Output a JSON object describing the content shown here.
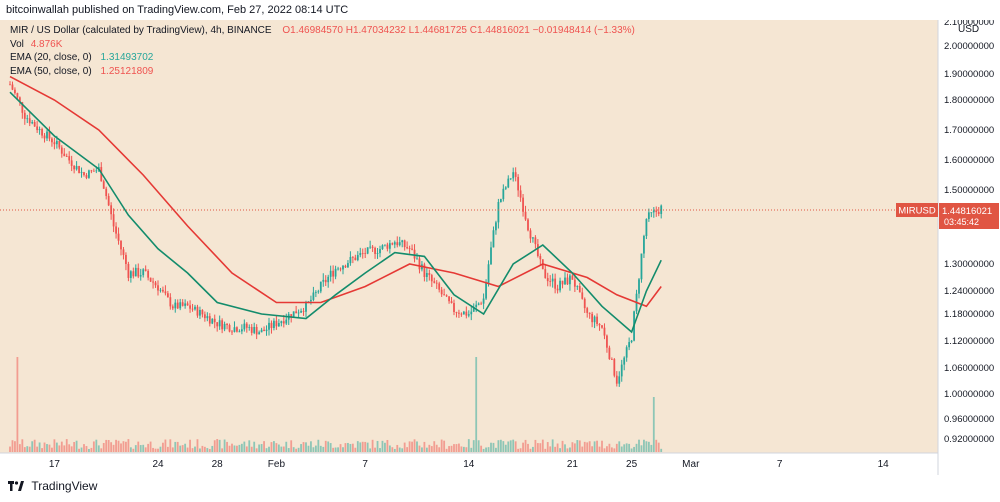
{
  "header": {
    "published": "bitcoinwallah published on TradingView.com, Feb 27, 2022 08:14 UTC"
  },
  "legend": {
    "symbol_line": "MIR / US Dollar (calculated by TradingView), 4h, BINANCE",
    "ohlc": "O1.46984570 H1.47034232 L1.44681725 C1.44816021 −0.01948414 (−1.33%)",
    "vol_label": "Vol",
    "vol_value": "4.876K",
    "ema20_label": "EMA (20, close, 0)",
    "ema20_value": "1.31493702",
    "ema50_label": "EMA (50, close, 0)",
    "ema50_value": "1.25121809"
  },
  "footer": {
    "brand": "TradingView"
  },
  "colors": {
    "background": "#f5e6d3",
    "up": "#26a69a",
    "down": "#ef5350",
    "ema20": "#138c6c",
    "ema50": "#e53935",
    "price_tag": "#e05543"
  },
  "chart_data": {
    "type": "candlestick",
    "currency": "USD",
    "symbol": "MIRUSD",
    "last_price": "1.44816021",
    "countdown": "03:45:42",
    "y_ticks": [
      "2.10000000",
      "2.00000000",
      "1.90000000",
      "1.80000000",
      "1.70000000",
      "1.60000000",
      "1.50000000",
      "1.40000000",
      "1.30000000",
      "1.24000000",
      "1.18000000",
      "1.12000000",
      "1.06000000",
      "1.00000000",
      "0.96000000",
      "0.92000000"
    ],
    "x_ticks": [
      "17",
      "24",
      "28",
      "Feb",
      "7",
      "14",
      "21",
      "25",
      "Mar",
      "7",
      "14"
    ],
    "ylim": [
      0.9,
      2.12
    ],
    "price_series": [
      [
        "Jan 14",
        1.86
      ],
      [
        "Jan 15",
        1.75
      ],
      [
        "Jan 16",
        1.7
      ],
      [
        "Jan 17",
        1.66
      ],
      [
        "Jan 18",
        1.6
      ],
      [
        "Jan 19",
        1.55
      ],
      [
        "Jan 20",
        1.57
      ],
      [
        "Jan 21",
        1.4
      ],
      [
        "Jan 22",
        1.28
      ],
      [
        "Jan 23",
        1.28
      ],
      [
        "Jan 24",
        1.25
      ],
      [
        "Jan 25",
        1.2
      ],
      [
        "Jan 26",
        1.2
      ],
      [
        "Jan 27",
        1.18
      ],
      [
        "Jan 28",
        1.16
      ],
      [
        "Jan 29",
        1.15
      ],
      [
        "Jan 30",
        1.15
      ],
      [
        "Jan 31",
        1.14
      ],
      [
        "Feb 1",
        1.16
      ],
      [
        "Feb 2",
        1.18
      ],
      [
        "Feb 3",
        1.2
      ],
      [
        "Feb 4",
        1.25
      ],
      [
        "Feb 5",
        1.29
      ],
      [
        "Feb 6",
        1.31
      ],
      [
        "Feb 7",
        1.33
      ],
      [
        "Feb 8",
        1.34
      ],
      [
        "Feb 9",
        1.36
      ],
      [
        "Feb 10",
        1.34
      ],
      [
        "Feb 11",
        1.28
      ],
      [
        "Feb 12",
        1.24
      ],
      [
        "Feb 13",
        1.19
      ],
      [
        "Feb 14",
        1.18
      ],
      [
        "Feb 15",
        1.22
      ],
      [
        "Feb 16",
        1.46
      ],
      [
        "Feb 17",
        1.56
      ],
      [
        "Feb 18",
        1.4
      ],
      [
        "Feb 19",
        1.28
      ],
      [
        "Feb 20",
        1.25
      ],
      [
        "Feb 21",
        1.27
      ],
      [
        "Feb 22",
        1.18
      ],
      [
        "Feb 23",
        1.15
      ],
      [
        "Feb 24",
        1.03
      ],
      [
        "Feb 25",
        1.13
      ],
      [
        "Feb 26",
        1.42
      ],
      [
        "Feb 27",
        1.45
      ]
    ],
    "ema20_series": [
      [
        "Jan 14",
        1.83
      ],
      [
        "Jan 17",
        1.68
      ],
      [
        "Jan 20",
        1.57
      ],
      [
        "Jan 22",
        1.43
      ],
      [
        "Jan 24",
        1.34
      ],
      [
        "Jan 26",
        1.28
      ],
      [
        "Jan 28",
        1.21
      ],
      [
        "Jan 31",
        1.18
      ],
      [
        "Feb 3",
        1.17
      ],
      [
        "Feb 5",
        1.23
      ],
      [
        "Feb 7",
        1.28
      ],
      [
        "Feb 9",
        1.33
      ],
      [
        "Feb 11",
        1.32
      ],
      [
        "Feb 13",
        1.23
      ],
      [
        "Feb 15",
        1.18
      ],
      [
        "Feb 17",
        1.3
      ],
      [
        "Feb 19",
        1.35
      ],
      [
        "Feb 21",
        1.28
      ],
      [
        "Feb 23",
        1.2
      ],
      [
        "Feb 25",
        1.14
      ],
      [
        "Feb 26",
        1.24
      ],
      [
        "Feb 27",
        1.31
      ]
    ],
    "ema50_series": [
      [
        "Jan 14",
        1.89
      ],
      [
        "Jan 17",
        1.8
      ],
      [
        "Jan 20",
        1.7
      ],
      [
        "Jan 23",
        1.55
      ],
      [
        "Jan 26",
        1.4
      ],
      [
        "Jan 29",
        1.28
      ],
      [
        "Feb 1",
        1.21
      ],
      [
        "Feb 4",
        1.21
      ],
      [
        "Feb 7",
        1.25
      ],
      [
        "Feb 10",
        1.3
      ],
      [
        "Feb 13",
        1.28
      ],
      [
        "Feb 16",
        1.25
      ],
      [
        "Feb 19",
        1.3
      ],
      [
        "Feb 22",
        1.27
      ],
      [
        "Feb 24",
        1.23
      ],
      [
        "Feb 26",
        1.2
      ],
      [
        "Feb 27",
        1.25
      ]
    ],
    "volume_spikes": [
      [
        "Jan 14",
        "high"
      ],
      [
        "Feb 14",
        "high"
      ],
      [
        "Feb 26",
        "medium"
      ]
    ]
  }
}
